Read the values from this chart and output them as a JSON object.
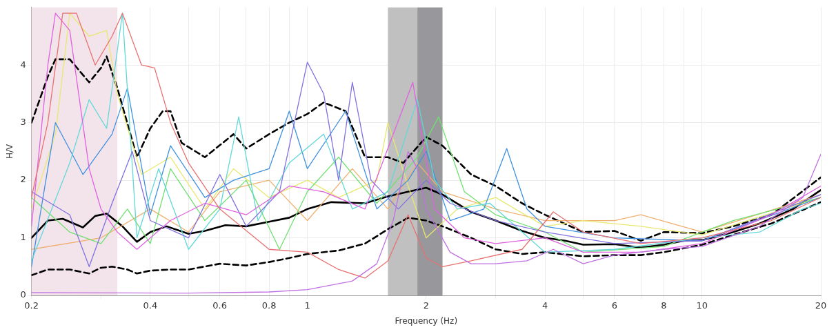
{
  "chart_data": {
    "type": "line",
    "xlabel": "Frequency (Hz)",
    "ylabel": "H/V",
    "log": "x",
    "grid": true,
    "legend": false,
    "marker": "none",
    "xlim": [
      0.2,
      20
    ],
    "xticks": [
      0.2,
      {
        "value": 0.3,
        "label": null
      },
      0.4,
      {
        "value": 0.5,
        "label": null
      },
      0.6,
      {
        "value": 0.7,
        "label": null
      },
      0.8,
      {
        "value": 0.9,
        "label": null
      },
      1,
      2,
      {
        "value": 3,
        "label": null
      },
      4,
      {
        "value": 5,
        "label": null
      },
      6,
      {
        "value": 7,
        "label": null
      },
      8,
      {
        "value": 9,
        "label": null
      },
      10,
      20
    ],
    "ylim": [
      0,
      5
    ],
    "yticks": [
      0,
      1,
      2,
      3,
      4
    ],
    "bands": [
      {
        "axis": "x",
        "from": 0.2,
        "to": 0.33,
        "color": "#f3e4ec"
      },
      {
        "axis": "x",
        "from": 1.6,
        "to": 1.9,
        "color": "#c0c0c0"
      },
      {
        "axis": "x",
        "from": 1.9,
        "to": 2.2,
        "color": "#98989c"
      }
    ],
    "series": [
      {
        "color": "#c070e0",
        "x": [
          0.2,
          0.5,
          0.8,
          1.0,
          1.3,
          1.5,
          1.65,
          1.8,
          1.9,
          2.0,
          2.3,
          2.6,
          3,
          3.6,
          4.2,
          5,
          6,
          8,
          10,
          14,
          18,
          20
        ],
        "values": [
          0.05,
          0.04,
          0.06,
          0.1,
          0.25,
          0.55,
          1.3,
          2.5,
          2.2,
          1.5,
          0.75,
          0.55,
          0.55,
          0.6,
          0.8,
          0.55,
          0.7,
          0.8,
          0.85,
          1.2,
          1.7,
          2.45
        ]
      },
      {
        "color": "#e87070",
        "x": [
          0.2,
          0.22,
          0.24,
          0.26,
          0.29,
          0.32,
          0.34,
          0.38,
          0.41,
          0.45,
          0.5,
          0.6,
          0.8,
          1.0,
          1.2,
          1.4,
          1.6,
          1.8,
          2.0,
          2.2,
          2.6,
          3.5,
          4.2,
          5,
          7,
          10,
          15,
          20
        ],
        "values": [
          1.7,
          3.0,
          4.9,
          4.9,
          4.0,
          4.5,
          4.9,
          4.0,
          3.95,
          3.0,
          2.3,
          1.5,
          0.8,
          0.75,
          0.45,
          0.3,
          0.6,
          1.4,
          0.65,
          0.5,
          0.6,
          0.8,
          1.45,
          1.1,
          0.9,
          1.0,
          1.3,
          1.7
        ]
      },
      {
        "color": "#e060e0",
        "x": [
          0.2,
          0.22,
          0.23,
          0.25,
          0.28,
          0.3,
          0.33,
          0.37,
          0.45,
          0.55,
          0.7,
          0.9,
          1.1,
          1.4,
          1.85,
          2.1,
          2.5,
          3,
          4,
          5,
          7,
          10,
          15,
          20
        ],
        "values": [
          1.2,
          4.0,
          4.9,
          4.6,
          2.2,
          1.5,
          1.1,
          0.8,
          1.3,
          1.6,
          1.4,
          1.9,
          1.8,
          1.5,
          3.7,
          1.5,
          1.0,
          0.9,
          1.0,
          0.75,
          0.75,
          0.9,
          1.4,
          1.9
        ]
      },
      {
        "color": "#8070e0",
        "x": [
          0.2,
          0.25,
          0.28,
          0.32,
          0.36,
          0.4,
          0.5,
          0.6,
          0.7,
          0.85,
          1.0,
          1.1,
          1.2,
          1.3,
          1.45,
          1.7,
          2.0,
          2.3,
          3,
          4,
          6,
          10,
          20
        ],
        "values": [
          1.8,
          1.4,
          0.5,
          1.6,
          2.5,
          1.3,
          1.0,
          2.1,
          1.2,
          1.8,
          4.05,
          3.5,
          2.0,
          3.7,
          2.0,
          1.5,
          2.0,
          1.6,
          1.3,
          1.1,
          0.9,
          0.95,
          1.75
        ]
      },
      {
        "color": "#60d8d8",
        "x": [
          0.2,
          0.25,
          0.28,
          0.31,
          0.34,
          0.37,
          0.42,
          0.5,
          0.6,
          0.67,
          0.75,
          0.9,
          1.1,
          1.3,
          1.6,
          1.9,
          2.1,
          2.4,
          2.9,
          3.5,
          4,
          6,
          10,
          14,
          18,
          20
        ],
        "values": [
          0.6,
          2.3,
          3.4,
          2.9,
          4.9,
          1.0,
          2.2,
          0.8,
          1.5,
          3.1,
          1.3,
          2.3,
          2.8,
          1.5,
          1.8,
          3.4,
          2.0,
          1.5,
          1.6,
          1.1,
          0.75,
          0.8,
          1.0,
          1.1,
          1.5,
          1.6
        ]
      },
      {
        "color": "#4090e0",
        "x": [
          0.2,
          0.23,
          0.27,
          0.32,
          0.35,
          0.4,
          0.45,
          0.55,
          0.65,
          0.8,
          0.9,
          1.0,
          1.25,
          1.5,
          1.8,
          2.0,
          2.3,
          2.8,
          3.2,
          3.6,
          4,
          6,
          10,
          20
        ],
        "values": [
          0.5,
          3.0,
          2.1,
          2.8,
          3.6,
          1.4,
          2.6,
          1.7,
          2.0,
          2.2,
          3.2,
          2.2,
          3.2,
          1.5,
          2.0,
          2.5,
          1.3,
          1.5,
          2.55,
          1.5,
          1.2,
          1.0,
          0.95,
          1.7
        ]
      },
      {
        "color": "#70e070",
        "x": [
          0.2,
          0.25,
          0.3,
          0.35,
          0.4,
          0.45,
          0.55,
          0.7,
          0.85,
          1.0,
          1.2,
          1.5,
          1.9,
          2.15,
          2.5,
          3,
          4,
          5,
          8,
          12,
          20
        ],
        "values": [
          1.7,
          1.1,
          0.9,
          1.5,
          0.9,
          2.2,
          1.3,
          2.0,
          0.8,
          1.8,
          2.4,
          1.6,
          2.4,
          3.1,
          1.8,
          1.4,
          1.1,
          0.75,
          0.85,
          1.3,
          1.7
        ]
      },
      {
        "color": "#e8e870",
        "x": [
          0.2,
          0.23,
          0.25,
          0.28,
          0.31,
          0.33,
          0.38,
          0.45,
          0.55,
          0.65,
          0.8,
          1.0,
          1.2,
          1.5,
          1.6,
          1.8,
          2.0,
          2.4,
          3,
          4,
          5,
          7,
          10,
          20
        ],
        "values": [
          1.5,
          2.8,
          4.9,
          4.5,
          4.6,
          3.5,
          2.1,
          2.4,
          1.5,
          2.2,
          1.7,
          2.0,
          1.7,
          2.0,
          3.0,
          1.9,
          1.0,
          1.5,
          1.7,
          1.2,
          1.3,
          1.2,
          1.05,
          1.7
        ]
      },
      {
        "color": "#f0b070",
        "x": [
          0.2,
          0.3,
          0.4,
          0.5,
          0.6,
          0.8,
          1.0,
          1.3,
          1.6,
          1.9,
          2.2,
          3,
          4,
          6,
          7,
          10,
          20
        ],
        "values": [
          0.8,
          1.0,
          1.5,
          1.1,
          1.8,
          2.0,
          1.3,
          2.2,
          1.5,
          2.3,
          1.8,
          1.5,
          1.3,
          1.3,
          1.4,
          1.1,
          1.75
        ]
      },
      {
        "color": "#000000",
        "line_style": "dashed",
        "x": [
          0.2,
          0.22,
          0.23,
          0.25,
          0.28,
          0.3,
          0.31,
          0.33,
          0.37,
          0.4,
          0.43,
          0.45,
          0.48,
          0.55,
          0.65,
          0.7,
          0.8,
          0.9,
          1.0,
          1.1,
          1.25,
          1.4,
          1.6,
          1.75,
          2.0,
          2.2,
          2.6,
          3.0,
          3.5,
          4.0,
          5,
          6,
          7,
          8,
          10,
          12,
          15,
          20
        ],
        "values": [
          3.0,
          3.8,
          4.1,
          4.1,
          3.7,
          3.95,
          4.15,
          3.6,
          2.4,
          2.9,
          3.2,
          3.2,
          2.65,
          2.4,
          2.8,
          2.55,
          2.8,
          3.0,
          3.15,
          3.35,
          3.2,
          2.4,
          2.4,
          2.3,
          2.75,
          2.6,
          2.1,
          1.9,
          1.6,
          1.4,
          1.1,
          1.12,
          0.95,
          1.1,
          1.08,
          1.2,
          1.4,
          2.05
        ]
      },
      {
        "color": "#000000",
        "line_style": "dashed",
        "x": [
          0.2,
          0.22,
          0.25,
          0.28,
          0.3,
          0.32,
          0.35,
          0.37,
          0.4,
          0.45,
          0.5,
          0.6,
          0.7,
          0.8,
          0.9,
          1.0,
          1.2,
          1.4,
          1.6,
          1.8,
          2.0,
          2.2,
          2.6,
          3.0,
          3.5,
          4,
          5,
          6,
          7,
          8,
          10,
          12,
          15,
          20
        ],
        "values": [
          0.35,
          0.45,
          0.45,
          0.38,
          0.48,
          0.5,
          0.45,
          0.38,
          0.43,
          0.45,
          0.45,
          0.55,
          0.52,
          0.58,
          0.65,
          0.72,
          0.78,
          0.9,
          1.15,
          1.35,
          1.3,
          1.2,
          1.0,
          0.8,
          0.72,
          0.75,
          0.68,
          0.7,
          0.7,
          0.75,
          0.88,
          1.05,
          1.25,
          1.62
        ]
      },
      {
        "color": "#000000",
        "x": [
          0.2,
          0.22,
          0.24,
          0.27,
          0.29,
          0.31,
          0.34,
          0.37,
          0.4,
          0.44,
          0.5,
          0.55,
          0.62,
          0.7,
          0.8,
          0.9,
          1.0,
          1.15,
          1.4,
          1.6,
          1.8,
          2.0,
          2.2,
          2.6,
          3.0,
          3.5,
          4.0,
          4.5,
          5.0,
          6,
          7,
          8,
          9,
          10,
          12,
          14,
          17,
          20
        ],
        "values": [
          1.0,
          1.3,
          1.33,
          1.18,
          1.38,
          1.42,
          1.2,
          0.93,
          1.1,
          1.2,
          1.07,
          1.12,
          1.22,
          1.2,
          1.28,
          1.35,
          1.5,
          1.62,
          1.6,
          1.72,
          1.8,
          1.87,
          1.75,
          1.45,
          1.3,
          1.12,
          1.0,
          0.95,
          0.88,
          0.89,
          0.83,
          0.88,
          0.95,
          0.96,
          1.1,
          1.25,
          1.5,
          1.83
        ]
      }
    ]
  }
}
